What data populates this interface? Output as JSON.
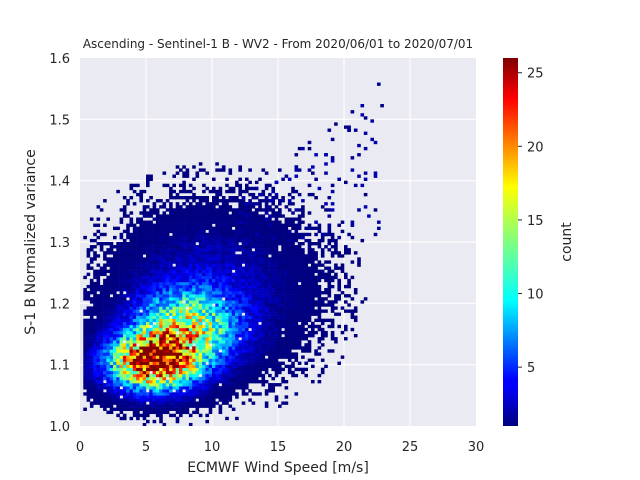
{
  "chart_data": {
    "type": "heatmap",
    "title": "Ascending - Sentinel-1 B - WV2 - From 2020/06/01 to 2020/07/01",
    "xlabel": "ECMWF Wind Speed [m/s]",
    "ylabel": "S-1 B Normalized variance",
    "xlim": [
      0,
      30
    ],
    "ylim": [
      1.0,
      1.6
    ],
    "xticks": [
      0,
      5,
      10,
      15,
      20,
      25,
      30
    ],
    "xtick_labels": [
      "0",
      "5",
      "10",
      "15",
      "20",
      "25",
      "30"
    ],
    "yticks": [
      1.0,
      1.1,
      1.2,
      1.3,
      1.4,
      1.5,
      1.6
    ],
    "ytick_labels": [
      "1.0",
      "1.1",
      "1.2",
      "1.3",
      "1.4",
      "1.5",
      "1.6"
    ],
    "grid": true,
    "colormap": "jet",
    "colorbar": {
      "label": "count",
      "range": [
        1,
        26
      ],
      "ticks": [
        5,
        10,
        15,
        20,
        25
      ],
      "tick_labels": [
        "5",
        "10",
        "15",
        "20",
        "25"
      ]
    },
    "bin_size": {
      "x": 0.25,
      "y": 0.005
    },
    "density_components": [
      {
        "center_x": 5.5,
        "center_y": 1.105,
        "sigma_x": 2.2,
        "sigma_y": 0.03,
        "peak_count": 25
      },
      {
        "center_x": 8.0,
        "center_y": 1.16,
        "sigma_x": 2.5,
        "sigma_y": 0.04,
        "peak_count": 14
      },
      {
        "center_x": 10.0,
        "center_y": 1.22,
        "sigma_x": 4.2,
        "sigma_y": 0.075,
        "peak_count": 3
      }
    ],
    "outlier_region": {
      "x_range": [
        12,
        23
      ],
      "y_range": [
        1.3,
        1.57
      ]
    }
  },
  "colors": {
    "plot_background": "#eaeaf2",
    "grid": "#ffffff",
    "text": "#262626"
  }
}
